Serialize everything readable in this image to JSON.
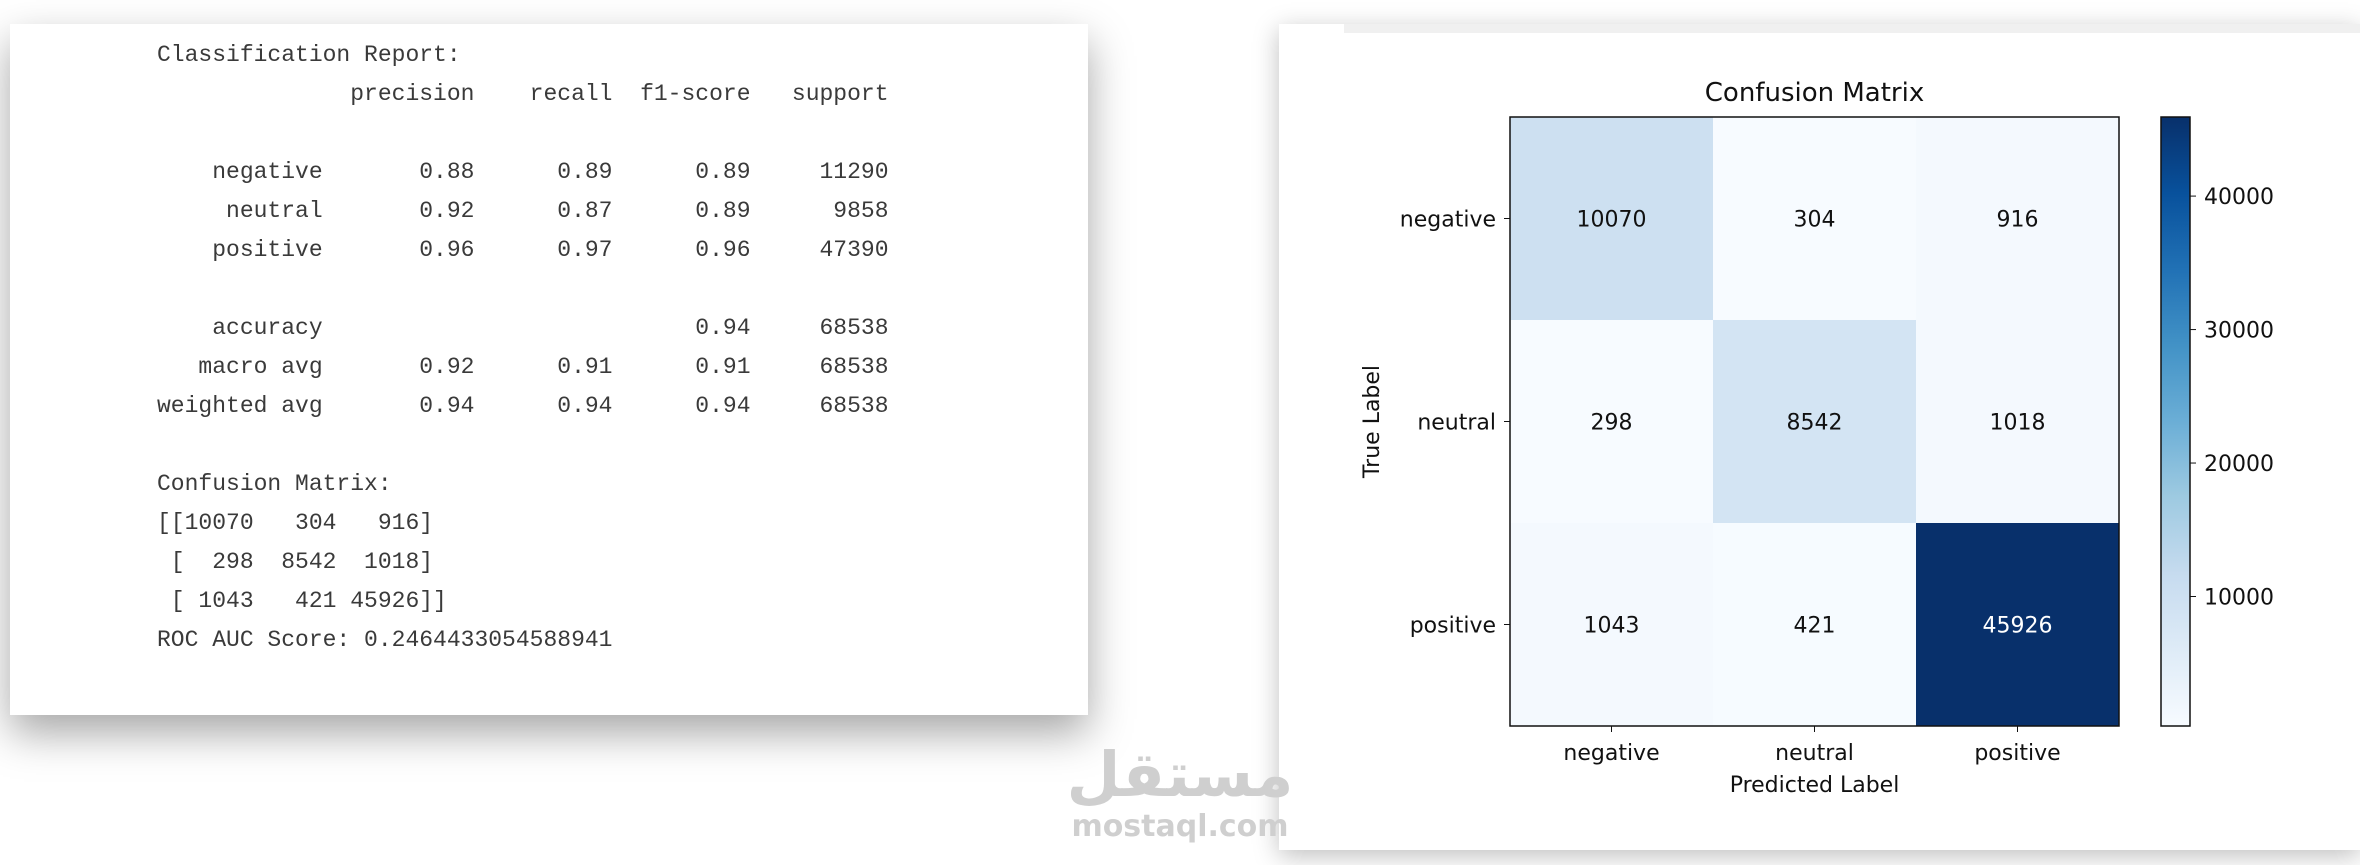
{
  "report": {
    "title": "Classification Report:",
    "header": "              precision    recall  f1-score   support",
    "class_rows": [
      "    negative       0.88      0.89      0.89     11290",
      "     neutral       0.92      0.87      0.89      9858",
      "    positive       0.96      0.97      0.96     47390"
    ],
    "avg_rows": [
      "    accuracy                           0.94     68538",
      "   macro avg       0.92      0.91      0.91     68538",
      "weighted avg       0.94      0.94      0.94     68538"
    ],
    "matrix_title": "Confusion Matrix:",
    "matrix_rows": [
      "[[10070   304   916]",
      " [  298  8542  1018]",
      " [ 1043   421 45926]]"
    ],
    "roc": "ROC AUC Score: 0.2464433054588941"
  },
  "chart_data": {
    "type": "heatmap",
    "title": "Confusion Matrix",
    "xlabel": "Predicted Label",
    "ylabel": "True Label",
    "x_categories": [
      "negative",
      "neutral",
      "positive"
    ],
    "y_categories": [
      "negative",
      "neutral",
      "positive"
    ],
    "values": [
      [
        10070,
        304,
        916
      ],
      [
        298,
        8542,
        1018
      ],
      [
        1043,
        421,
        45926
      ]
    ],
    "clim": [
      298,
      45926
    ],
    "cticks": [
      10000,
      20000,
      30000,
      40000
    ],
    "colormap": [
      "#f7fbff",
      "#deebf7",
      "#c6dbef",
      "#9ecae1",
      "#6baed6",
      "#4292c6",
      "#2171b5",
      "#08519c",
      "#08306b"
    ]
  },
  "watermark": {
    "arabic": "مستقل",
    "latin": "mostaql.com"
  }
}
